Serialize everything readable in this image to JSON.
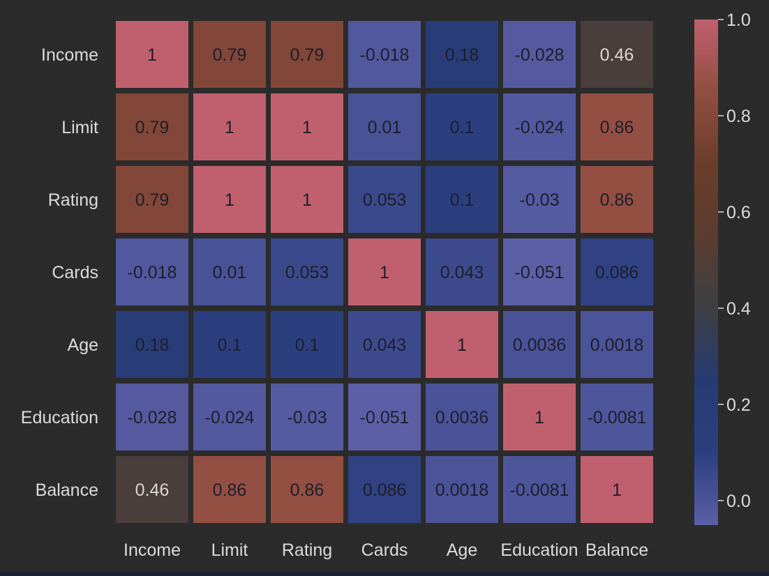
{
  "chart_data": {
    "type": "heatmap",
    "row_labels": [
      "Income",
      "Limit",
      "Rating",
      "Cards",
      "Age",
      "Education",
      "Balance"
    ],
    "col_labels": [
      "Income",
      "Limit",
      "Rating",
      "Cards",
      "Age",
      "Education",
      "Balance"
    ],
    "cells": [
      [
        "1",
        "0.79",
        "0.79",
        "-0.018",
        "0.18",
        "-0.028",
        "0.46"
      ],
      [
        "0.79",
        "1",
        "1",
        "0.01",
        "0.1",
        "-0.024",
        "0.86"
      ],
      [
        "0.79",
        "1",
        "1",
        "0.053",
        "0.1",
        "-0.03",
        "0.86"
      ],
      [
        "-0.018",
        "0.01",
        "0.053",
        "1",
        "0.043",
        "-0.051",
        "0.086"
      ],
      [
        "0.18",
        "0.1",
        "0.1",
        "0.043",
        "1",
        "0.0036",
        "0.0018"
      ],
      [
        "-0.028",
        "-0.024",
        "-0.03",
        "-0.051",
        "0.0036",
        "1",
        "-0.0081"
      ],
      [
        "0.46",
        "0.86",
        "0.86",
        "0.086",
        "0.0018",
        "-0.0081",
        "1"
      ]
    ],
    "colorbar": {
      "vmin": -0.051,
      "vmax": 1.0,
      "ticks": [
        "1.0",
        "0.8",
        "0.6",
        "0.4",
        "0.2",
        "0.0"
      ],
      "tick_values": [
        1.0,
        0.8,
        0.6,
        0.4,
        0.2,
        0.0
      ],
      "stops": [
        {
          "value": -0.051,
          "color": "#5c5fa6"
        },
        {
          "value": 0.1,
          "color": "#2b3f7f"
        },
        {
          "value": 0.25,
          "color": "#263a72"
        },
        {
          "value": 0.4,
          "color": "#3e3f44"
        },
        {
          "value": 0.55,
          "color": "#5a3c2e"
        },
        {
          "value": 0.7,
          "color": "#6b3d2b"
        },
        {
          "value": 0.85,
          "color": "#914e40"
        },
        {
          "value": 1.0,
          "color": "#c0606f"
        }
      ]
    },
    "annotations_color": "#1e1e2a",
    "label_color": "#dcdcdc",
    "background": "#2b2b2b",
    "grid": false
  }
}
